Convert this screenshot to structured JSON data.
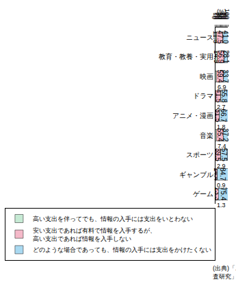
{
  "chart_data": {
    "type": "bar",
    "orientation": "horizontal",
    "stacked": true,
    "data_labels": true,
    "grid": false,
    "legend": "bottom",
    "x_label": "(%)",
    "xlim": [
      0,
      100
    ],
    "xticks": [
      0,
      10,
      20,
      30,
      40,
      50,
      60,
      70,
      80,
      90,
      100
    ],
    "categories": [
      "ニュース",
      "教育・教養・実用",
      "映画",
      "ドラマ",
      "アニメ・漫画",
      "音楽",
      "スポーツ",
      "ギャンブル",
      "ゲーム"
    ],
    "series": [
      {
        "name": "高い支出を伴ってでも、情報の入手には支出をいとわない",
        "color": "#c6ead4",
        "values": [
          11.5,
          14.9,
          6.9,
          2.7,
          1.8,
          7.4,
          2.9,
          0.9,
          1.3
        ],
        "value_labels": [
          "11.5",
          "14.9",
          "6.9",
          "2.7",
          "1.8",
          "7.4",
          "2.9",
          "0.9",
          "1.3"
        ]
      },
      {
        "name": "安い支出であれば有料で情報を入手するが、高い支出であれば情報を入手しない",
        "color": "#f5b9c9",
        "values": [
          47.5,
          56.9,
          59.4,
          41.5,
          31.5,
          55.4,
          39.5,
          14.4,
          23.3
        ],
        "value_labels": [
          "47.5",
          "56.9",
          "59.4",
          "41.5",
          "31.5",
          "55.4",
          "39.5",
          "14.4",
          "23.3"
        ]
      },
      {
        "name": "どのような場合であっても、情報の入手には支出をかけたくない",
        "color": "#a9d9f1",
        "values": [
          41.0,
          28.1,
          33.7,
          55.8,
          66.7,
          37.2,
          57.5,
          84.7,
          75.4
        ],
        "value_labels": [
          "41.0",
          "28.1",
          "33.7",
          "55.8",
          "66.7",
          "37.2",
          "57.5",
          "84.7",
          "75.4"
        ]
      }
    ],
    "annotations": [
      "(出典)「ユビキタスネット社会における情報接触及び消費行動に関する調査研究」"
    ]
  }
}
